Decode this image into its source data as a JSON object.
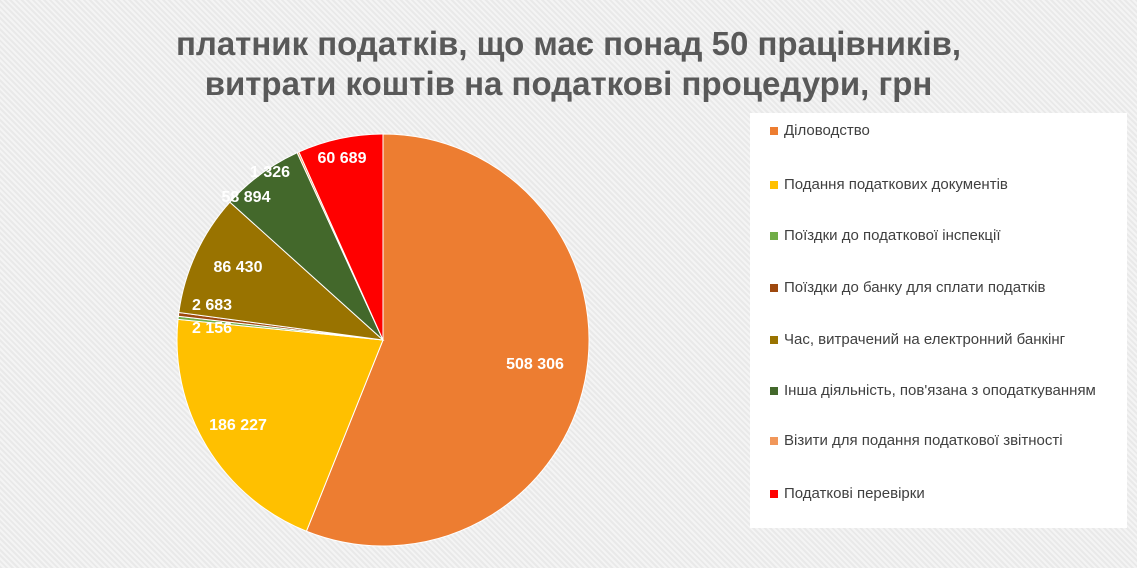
{
  "chart_data": {
    "type": "pie",
    "title": [
      "платник податків, що має понад 50 працівників,",
      "витрати коштів на податкові процедури, грн"
    ],
    "legend_position": "right",
    "slices": [
      {
        "label": "Діловодство",
        "value": 508306,
        "display": "508 306",
        "color": "#ED7D31"
      },
      {
        "label": "Подання податкових документів",
        "value": 186227,
        "display": "186 227",
        "color": "#FFC000"
      },
      {
        "label": "Поїздки до податкової інспекції",
        "value": 2156,
        "display": "2 156",
        "color": "#70AD47"
      },
      {
        "label": "Поїздки до банку для сплати податків",
        "value": 2683,
        "display": "2 683",
        "color": "#9E480E"
      },
      {
        "label": "Час, витрачений на електронний банкінг",
        "value": 86430,
        "display": "86 430",
        "color": "#997300"
      },
      {
        "label": "Інша діяльність, пов'язана з оподаткуванням",
        "value": 58894,
        "display": "58 894",
        "color": "#43682B"
      },
      {
        "label": "Візити для подання податкової звітності",
        "value": 1326,
        "display": "1 326",
        "color": "#F1975A"
      },
      {
        "label": "Податкові перевірки",
        "value": 60689,
        "display": "60 689",
        "color": "#FF0000"
      }
    ]
  }
}
